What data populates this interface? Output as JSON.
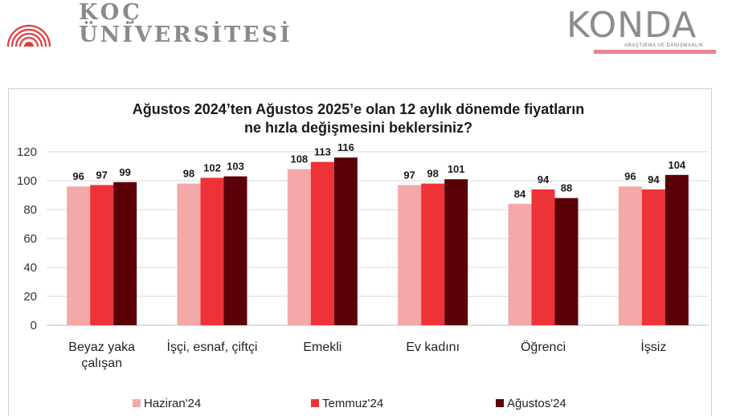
{
  "logos": {
    "left_line1": "KOÇ",
    "left_line2": "ÜNİVERSİTESİ",
    "right_word": "KONDA",
    "right_sub": "ARAŞTIRMA VE DANIŞMANLIK"
  },
  "colors": {
    "haziran": "#f4a8a8",
    "temmuz": "#ee3338",
    "agustos": "#5a0008",
    "koc_red": "#e23a3a"
  },
  "chart_data": {
    "type": "bar",
    "title": [
      "Ağustos 2024’ten Ağustos 2025’e olan 12 aylık dönemde fiyatların",
      "ne hızla değişmesini beklersiniz?"
    ],
    "categories": [
      [
        "Beyaz yaka",
        "çalışan"
      ],
      [
        "İşçi, esnaf, çiftçi"
      ],
      [
        "Emekli"
      ],
      [
        "Ev kadını"
      ],
      [
        "Öğrenci"
      ],
      [
        "İşsiz"
      ]
    ],
    "series": [
      {
        "name": "Haziran'24",
        "values": [
          96,
          98,
          108,
          97,
          84,
          96
        ]
      },
      {
        "name": "Temmuz'24",
        "values": [
          97,
          102,
          113,
          98,
          94,
          94
        ]
      },
      {
        "name": "Ağustos'24",
        "values": [
          99,
          103,
          116,
          101,
          88,
          104
        ]
      }
    ],
    "ylim": [
      0,
      120
    ],
    "yticks": [
      0,
      20,
      40,
      60,
      80,
      100,
      120
    ],
    "grid": true,
    "legend": "bottom"
  }
}
